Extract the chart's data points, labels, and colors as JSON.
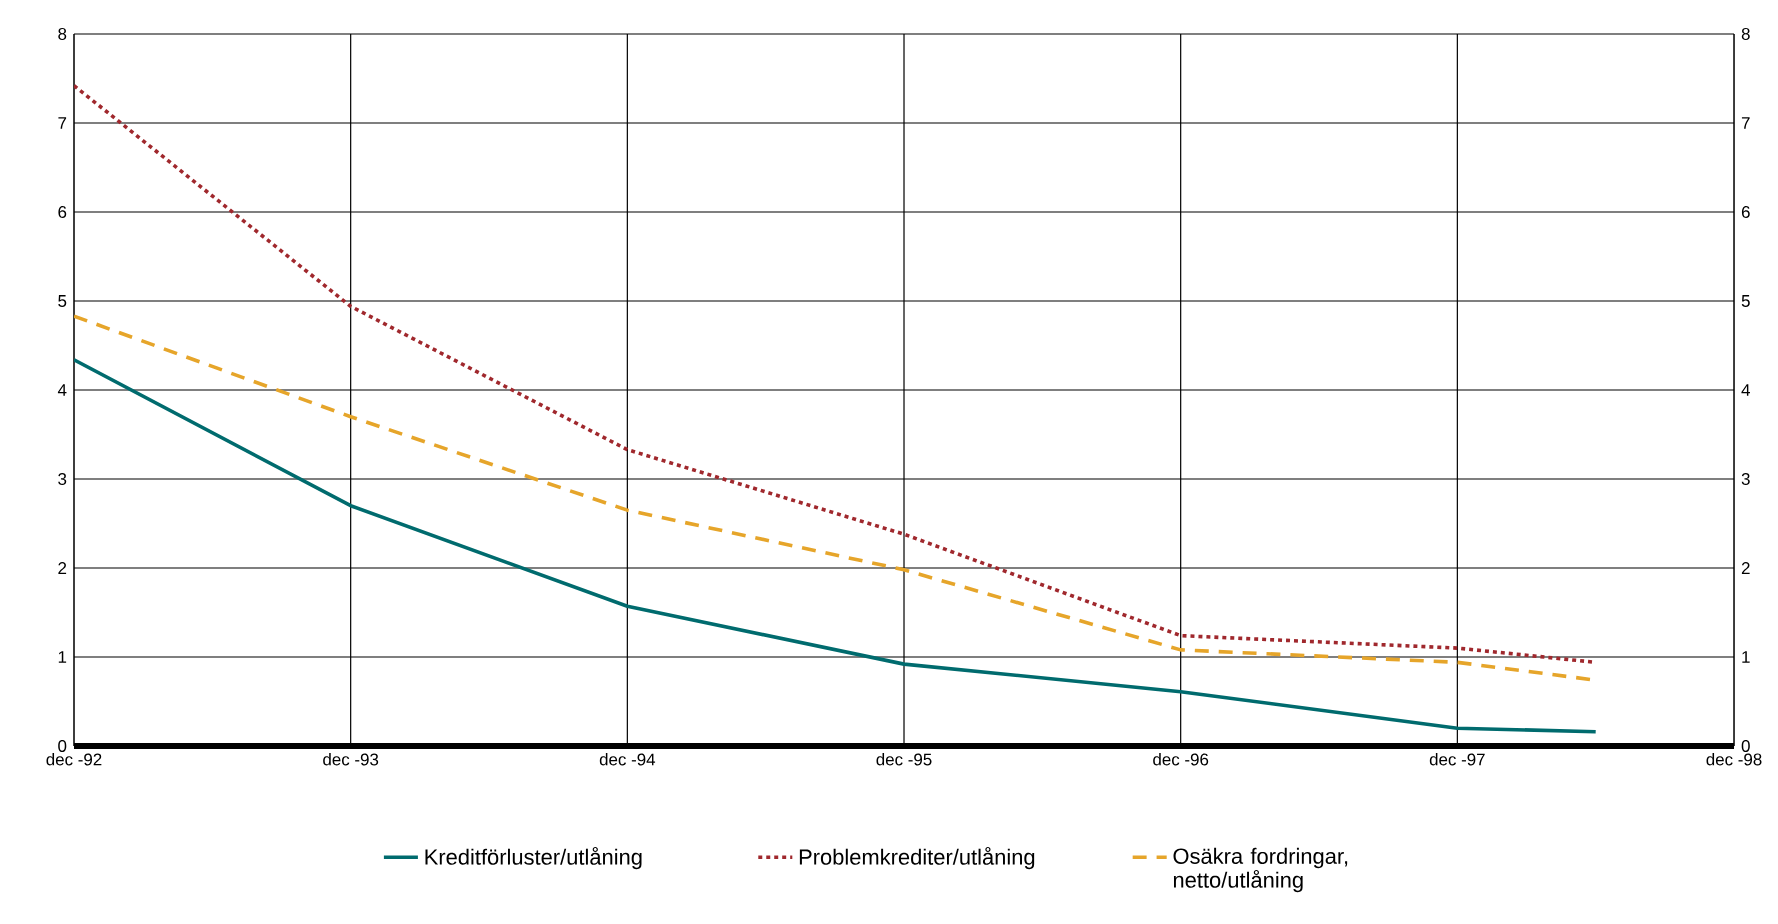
{
  "chart_data": {
    "type": "line",
    "x": [
      "1992-12",
      "1993-12",
      "1994-12",
      "1995-12",
      "1996-12",
      "1997-12",
      "1998-06"
    ],
    "series": [
      {
        "name": "Kreditförluster/utlåning",
        "color": "#006b6e",
        "line_style": "solid",
        "values": [
          4.34,
          2.7,
          1.57,
          0.92,
          0.61,
          0.2,
          0.16
        ]
      },
      {
        "name": "Problemkrediter/utlåning",
        "color": "#a0282d",
        "line_style": "dotted",
        "values": [
          7.42,
          4.94,
          3.33,
          2.38,
          1.24,
          1.1,
          0.94
        ]
      },
      {
        "name": "Osäkra fordringar, netto/utlåning",
        "color": "#e6a52a",
        "line_style": "dashed",
        "values": [
          4.83,
          3.7,
          2.65,
          1.98,
          1.08,
          0.94,
          0.74
        ]
      }
    ],
    "xlim": [
      "1992-12",
      "1998-12"
    ],
    "xticks": [
      {
        "value": "1992-12",
        "label": "dec -92"
      },
      {
        "value": "1993-12",
        "label": "dec -93"
      },
      {
        "value": "1994-12",
        "label": "dec -94"
      },
      {
        "value": "1995-12",
        "label": "dec -95"
      },
      {
        "value": "1996-12",
        "label": "dec -96"
      },
      {
        "value": "1997-12",
        "label": "dec -97"
      },
      {
        "value": "1998-12",
        "label": "dec -98"
      }
    ],
    "ylim": [
      0,
      8
    ],
    "yticks": [
      0,
      1,
      2,
      3,
      4,
      5,
      6,
      7,
      8
    ],
    "y2lim": [
      0,
      8
    ],
    "y2ticks": [
      0,
      1,
      2,
      3,
      4,
      5,
      6,
      7,
      8
    ],
    "grid": true,
    "legend": "bottom",
    "marker": "none"
  }
}
